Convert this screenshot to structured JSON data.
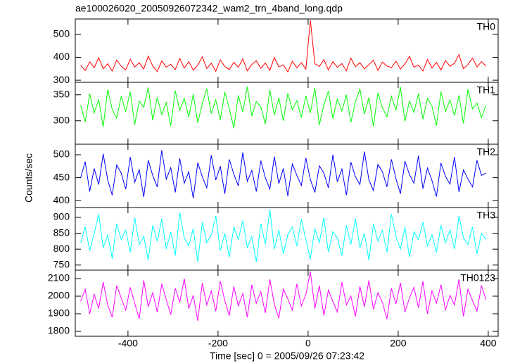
{
  "chart_data": {
    "type": "line",
    "title": "ae100026020_20050926072342_wam2_trn_4band_long.qdp",
    "x_label": "Time [sec] 0 = 2005/09/26 07:23:42",
    "y_label": "Counts/sec",
    "xlim": [
      -517,
      422
    ],
    "xticks": [
      -400,
      -200,
      0,
      200,
      400
    ],
    "x": [
      -505,
      -495,
      -485,
      -475,
      -465,
      -455,
      -445,
      -435,
      -425,
      -415,
      -405,
      -395,
      -385,
      -375,
      -365,
      -355,
      -345,
      -335,
      -325,
      -315,
      -305,
      -295,
      -285,
      -275,
      -265,
      -255,
      -245,
      -235,
      -225,
      -215,
      -205,
      -195,
      -185,
      -175,
      -165,
      -155,
      -145,
      -135,
      -125,
      -115,
      -105,
      -95,
      -85,
      -75,
      -65,
      -55,
      -45,
      -35,
      -25,
      -15,
      -5,
      5,
      15,
      25,
      35,
      45,
      55,
      65,
      75,
      85,
      95,
      105,
      115,
      125,
      135,
      145,
      155,
      165,
      175,
      185,
      195,
      205,
      215,
      225,
      235,
      245,
      255,
      265,
      275,
      285,
      295,
      305,
      315,
      325,
      335,
      345,
      355,
      365,
      375,
      385,
      395
    ],
    "series": [
      {
        "name": "TH0",
        "color": "#ff0000",
        "ylim": [
          291,
          567
        ],
        "yticks": [
          300,
          400,
          500
        ],
        "values": [
          365,
          342,
          380,
          355,
          398,
          350,
          372,
          340,
          388,
          361,
          345,
          392,
          358,
          376,
          349,
          405,
          362,
          338,
          384,
          357,
          370,
          346,
          395,
          353,
          381,
          344,
          366,
          402,
          351,
          374,
          339,
          389,
          360,
          347,
          378,
          356,
          393,
          341,
          369,
          385,
          352,
          375,
          343,
          399,
          358,
          367,
          336,
          383,
          354,
          377,
          348,
          562,
          372,
          360,
          390,
          345,
          381,
          356,
          373,
          341,
          396,
          359,
          376,
          350,
          368,
          387,
          343,
          379,
          362,
          355,
          383,
          349,
          371,
          404,
          357,
          366,
          340,
          391,
          353,
          378,
          345,
          386,
          361,
          374,
          412,
          350,
          369,
          396,
          358,
          381,
          362
        ]
      },
      {
        "name": "TH1",
        "color": "#00ff00",
        "ylim": [
          255,
          374
        ],
        "yticks": [
          300,
          350
        ],
        "values": [
          330,
          298,
          352,
          315,
          341,
          288,
          360,
          322,
          305,
          347,
          318,
          356,
          293,
          338,
          326,
          364,
          301,
          345,
          312,
          335,
          290,
          358,
          320,
          343,
          307,
          351,
          296,
          333,
          362,
          314,
          340,
          302,
          355,
          324,
          286,
          349,
          317,
          366,
          309,
          337,
          327,
          294,
          359,
          311,
          344,
          300,
          353,
          321,
          339,
          306,
          348,
          315,
          363,
          292,
          331,
          357,
          304,
          342,
          319,
          350,
          297,
          336,
          361,
          313,
          345,
          289,
          354,
          325,
          308,
          347,
          320,
          365,
          299,
          338,
          316,
          352,
          303,
          343,
          328,
          291,
          356,
          318,
          340,
          310,
          349,
          295,
          361,
          323,
          334,
          306,
          330
        ]
      },
      {
        "name": "TH2",
        "color": "#0000ff",
        "ylim": [
          385,
          523
        ],
        "yticks": [
          400,
          450,
          500
        ],
        "values": [
          450,
          485,
          420,
          470,
          435,
          502,
          445,
          412,
          478,
          460,
          425,
          495,
          440,
          468,
          408,
          488,
          455,
          430,
          510,
          447,
          472,
          418,
          492,
          438,
          463,
          405,
          483,
          452,
          428,
          499,
          445,
          475,
          415,
          490,
          458,
          432,
          505,
          442,
          466,
          420,
          487,
          450,
          425,
          496,
          437,
          470,
          410,
          480,
          455,
          433,
          493,
          446,
          418,
          476,
          460,
          428,
          500,
          441,
          469,
          412,
          484,
          452,
          435,
          507,
          445,
          422,
          479,
          463,
          430,
          490,
          448,
          415,
          486,
          457,
          438,
          498,
          426,
          471,
          444,
          409,
          482,
          453,
          436,
          495,
          419,
          467,
          447,
          430,
          488,
          455,
          460
        ]
      },
      {
        "name": "TH3",
        "color": "#00ffff",
        "ylim": [
          734,
          931
        ],
        "yticks": [
          750,
          800,
          850,
          900
        ],
        "values": [
          820,
          870,
          795,
          850,
          910,
          805,
          845,
          770,
          880,
          830,
          860,
          790,
          900,
          815,
          840,
          765,
          875,
          825,
          895,
          800,
          855,
          780,
          915,
          835,
          810,
          865,
          760,
          885,
          820,
          845,
          905,
          795,
          850,
          775,
          870,
          830,
          890,
          805,
          840,
          760,
          880,
          815,
          925,
          800,
          860,
          785,
          845,
          870,
          810,
          895,
          830,
          770,
          865,
          820,
          900,
          790,
          855,
          835,
          780,
          875,
          815,
          895,
          805,
          850,
          765,
          880,
          825,
          860,
          790,
          910,
          840,
          800,
          870,
          775,
          855,
          830,
          885,
          810,
          845,
          790,
          875,
          820,
          860,
          800,
          905,
          835,
          815,
          870,
          785,
          850,
          830
        ]
      },
      {
        "name": "TH0123",
        "color": "#ff00ff",
        "ylim": [
          1772,
          2148
        ],
        "yticks": [
          1800,
          1900,
          2000,
          2100
        ],
        "values": [
          1970,
          2040,
          1900,
          2010,
          1930,
          2080,
          1950,
          1880,
          2060,
          1990,
          1920,
          2050,
          1960,
          1870,
          2090,
          1940,
          2020,
          1910,
          2070,
          1980,
          1895,
          2045,
          1965,
          2100,
          1930,
          2005,
          1860,
          2075,
          1950,
          2030,
          1915,
          2085,
          1975,
          1890,
          2055,
          1945,
          2015,
          1880,
          2065,
          1960,
          2025,
          1905,
          2095,
          1955,
          1875,
          2040,
          1985,
          1920,
          2070,
          1945,
          2010,
          2140,
          1930,
          2060,
          1890,
          2035,
          1970,
          1910,
          2080,
          1950,
          2000,
          1885,
          2055,
          1940,
          2090,
          1925,
          2020,
          1965,
          1870,
          2045,
          1955,
          2075,
          1910,
          1990,
          2050,
          1935,
          2085,
          1900,
          2030,
          1960,
          2065,
          1920,
          2005,
          1950,
          2095,
          1885,
          2040,
          1975,
          1915,
          2060,
          1980
        ]
      }
    ]
  }
}
